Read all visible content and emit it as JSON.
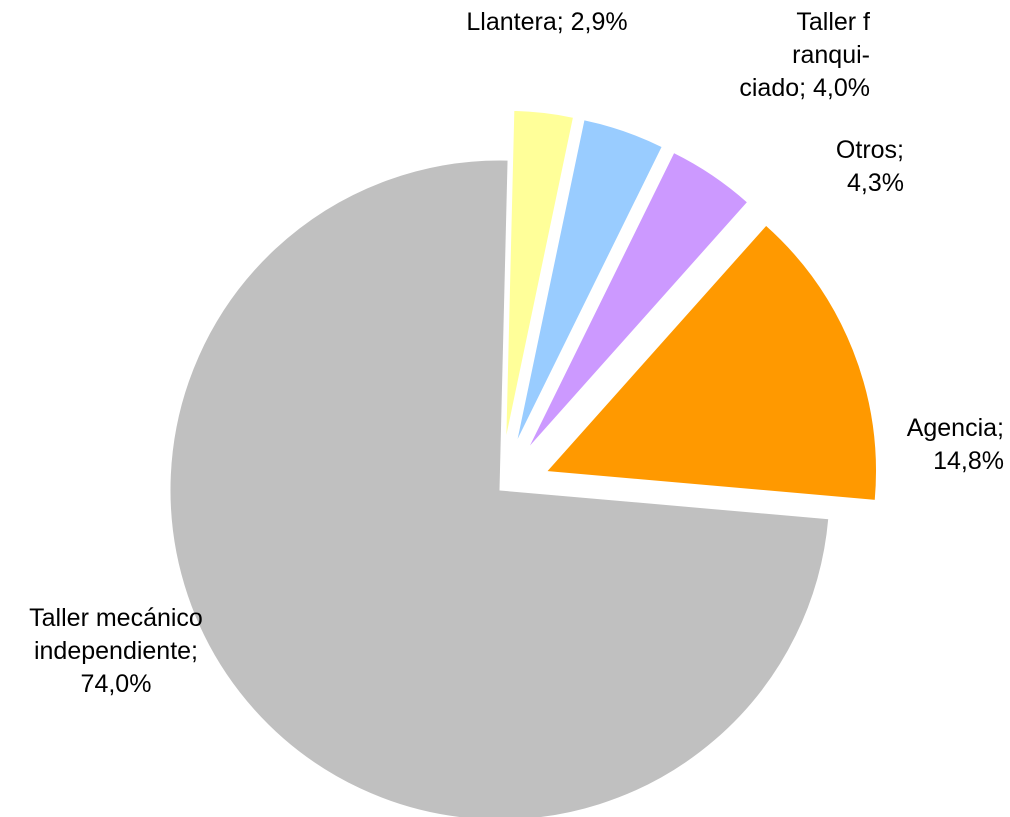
{
  "chart_data": {
    "type": "pie",
    "title": "",
    "slices": [
      {
        "name": "Taller mecánico independiente",
        "value": 74.0,
        "color": "#c0c0c0",
        "exploded": false,
        "label_lines": [
          "Taller mecánico",
          "independiente;",
          "74,0%"
        ]
      },
      {
        "name": "Llantera",
        "value": 2.9,
        "color": "#ffff99",
        "exploded": true,
        "label_lines": [
          "Llantera; 2,9%"
        ]
      },
      {
        "name": "Taller franquiciado",
        "value": 4.0,
        "color": "#99ccff",
        "exploded": true,
        "label_lines": [
          "Taller f",
          "ranqui-",
          "ciado; 4,0%"
        ]
      },
      {
        "name": "Otros",
        "value": 4.3,
        "color": "#cc99ff",
        "exploded": true,
        "label_lines": [
          "Otros;",
          "4,3%"
        ]
      },
      {
        "name": "Agencia",
        "value": 14.8,
        "color": "#ff9900",
        "exploded": true,
        "label_lines": [
          "Agencia;",
          "14,8%"
        ]
      }
    ]
  }
}
